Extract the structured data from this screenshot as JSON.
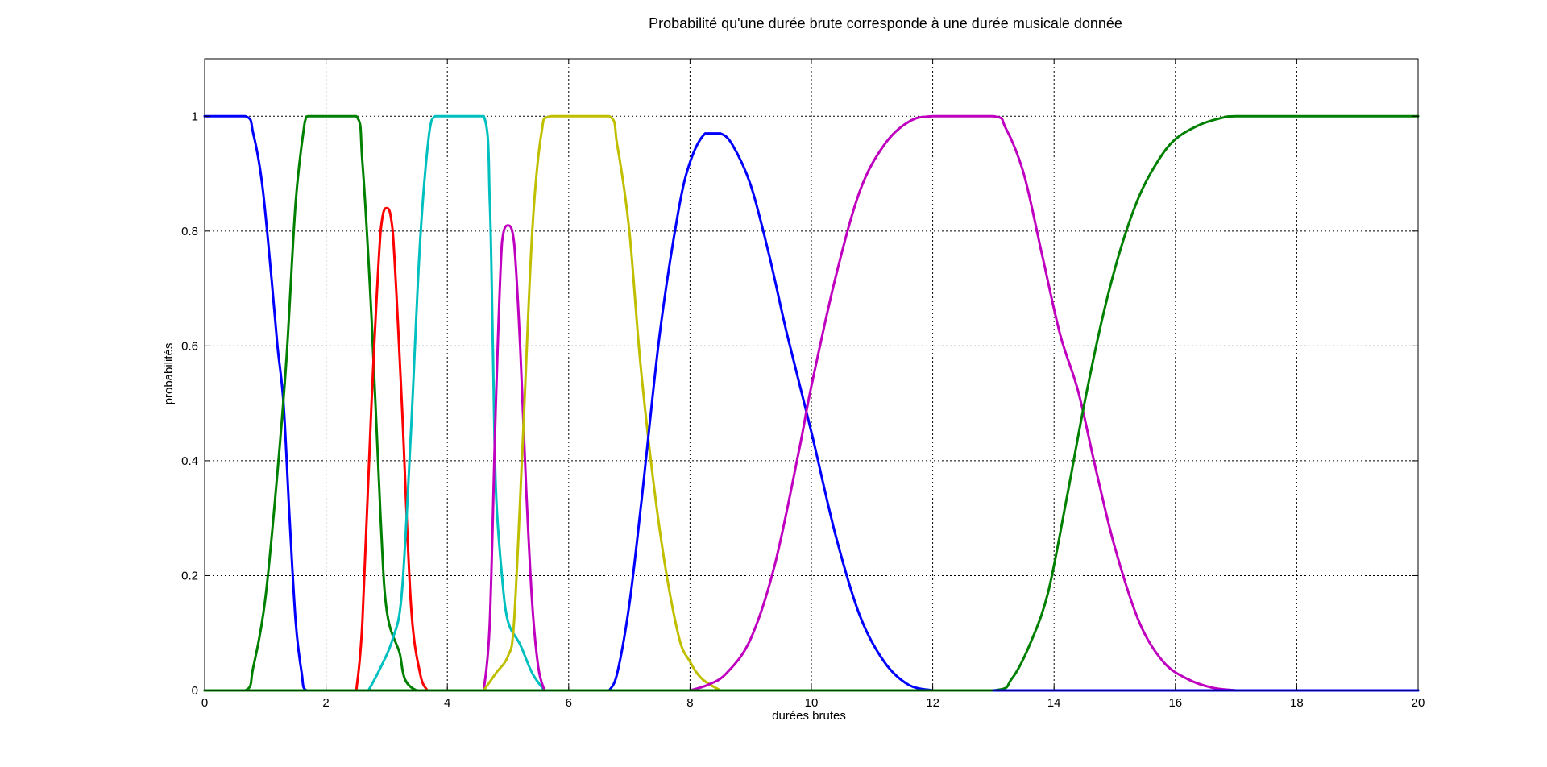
{
  "chart_data": {
    "type": "line",
    "title": "Probabilité qu'une durée brute corresponde à une durée musicale donnée",
    "xlabel": "durées brutes",
    "ylabel": "probabilités",
    "xlim": [
      0,
      20
    ],
    "ylim": [
      0,
      1.1
    ],
    "x_ticks": [
      0,
      2,
      4,
      6,
      8,
      10,
      12,
      14,
      16,
      18,
      20
    ],
    "x_tick_labels": [
      "0",
      "2",
      "4",
      "6",
      "8",
      "10",
      "12",
      "14",
      "16",
      "18",
      "20"
    ],
    "y_ticks": [
      0,
      0.2,
      0.4,
      0.6,
      0.8,
      1
    ],
    "y_tick_labels": [
      "0",
      "0.2",
      "0.4",
      "0.6",
      "0.8",
      "1"
    ],
    "grid": true,
    "series": [
      {
        "color": "#0000ff",
        "x": [
          0,
          0.67,
          0.8,
          0.95,
          1.1,
          1.2,
          1.3,
          1.4,
          1.5,
          1.6,
          1.68,
          20
        ],
        "y": [
          1,
          1,
          0.97,
          0.88,
          0.72,
          0.6,
          0.5,
          0.3,
          0.12,
          0.03,
          0,
          0
        ]
      },
      {
        "color": "#008000",
        "x": [
          0,
          0.67,
          0.8,
          1.0,
          1.2,
          1.35,
          1.5,
          1.65,
          1.7,
          2.5,
          2.6,
          2.75,
          2.9,
          3.0,
          3.2,
          3.5,
          20
        ],
        "y": [
          0,
          0,
          0.04,
          0.16,
          0.38,
          0.58,
          0.85,
          0.99,
          1,
          1,
          0.92,
          0.65,
          0.3,
          0.14,
          0.07,
          0,
          0
        ]
      },
      {
        "color": "#ff0000",
        "x": [
          2.5,
          2.6,
          2.75,
          2.9,
          3.0,
          3.1,
          3.25,
          3.4,
          3.55,
          3.67
        ],
        "y": [
          0,
          0.12,
          0.5,
          0.8,
          0.84,
          0.8,
          0.5,
          0.15,
          0.03,
          0
        ]
      },
      {
        "color": "#00bfbf",
        "x": [
          2.7,
          2.9,
          3.1,
          3.25,
          3.4,
          3.55,
          3.7,
          3.8,
          4.0,
          4.6,
          4.7,
          4.75,
          4.8,
          4.9,
          5.0,
          5.2,
          5.4,
          5.6
        ],
        "y": [
          0,
          0.04,
          0.09,
          0.17,
          0.45,
          0.78,
          0.97,
          1,
          1,
          1,
          0.85,
          0.6,
          0.35,
          0.2,
          0.12,
          0.08,
          0.03,
          0
        ]
      },
      {
        "color": "#bf00bf",
        "x": [
          4.6,
          4.7,
          4.8,
          4.9,
          5.0,
          5.1,
          5.2,
          5.3,
          5.4,
          5.5,
          5.6
        ],
        "y": [
          0,
          0.12,
          0.5,
          0.78,
          0.81,
          0.78,
          0.6,
          0.35,
          0.15,
          0.04,
          0
        ]
      },
      {
        "color": "#bfbf00",
        "x": [
          4.6,
          4.8,
          5.0,
          5.1,
          5.25,
          5.4,
          5.55,
          5.7,
          6.67,
          6.8,
          7.0,
          7.2,
          7.5,
          7.8,
          8.0,
          8.2,
          8.5
        ],
        "y": [
          0,
          0.03,
          0.06,
          0.12,
          0.45,
          0.8,
          0.97,
          1,
          1,
          0.95,
          0.8,
          0.55,
          0.28,
          0.1,
          0.05,
          0.02,
          0
        ]
      },
      {
        "color": "#0000ff",
        "x": [
          6.67,
          6.8,
          7.0,
          7.2,
          7.5,
          7.8,
          8.0,
          8.25,
          8.5,
          8.7,
          9.0,
          9.3,
          9.6,
          10.0,
          10.4,
          10.8,
          11.2,
          11.6,
          12.0
        ],
        "y": [
          0,
          0.03,
          0.15,
          0.33,
          0.62,
          0.83,
          0.92,
          0.97,
          0.97,
          0.95,
          0.88,
          0.76,
          0.62,
          0.45,
          0.27,
          0.13,
          0.05,
          0.01,
          0
        ]
      },
      {
        "color": "#bf00bf",
        "x": [
          8.0,
          8.3,
          8.6,
          9.0,
          9.4,
          9.8,
          10.0,
          10.4,
          10.8,
          11.2,
          11.6,
          12.0,
          13.0,
          13.2,
          13.5,
          13.8,
          14.1,
          14.4,
          14.7,
          15.0,
          15.4,
          15.8,
          16.2,
          16.6,
          17.0
        ],
        "y": [
          0,
          0.01,
          0.03,
          0.09,
          0.22,
          0.42,
          0.53,
          0.72,
          0.87,
          0.95,
          0.99,
          1,
          1,
          0.98,
          0.9,
          0.76,
          0.62,
          0.52,
          0.38,
          0.25,
          0.12,
          0.05,
          0.02,
          0.005,
          0
        ]
      },
      {
        "color": "#008000",
        "x": [
          0,
          13.0,
          13.3,
          13.6,
          13.9,
          14.2,
          14.5,
          14.8,
          15.1,
          15.4,
          15.7,
          16.0,
          16.4,
          16.8,
          17.0,
          20
        ],
        "y": [
          0,
          0,
          0.02,
          0.08,
          0.17,
          0.33,
          0.5,
          0.65,
          0.77,
          0.86,
          0.92,
          0.96,
          0.985,
          0.998,
          1,
          1
        ]
      },
      {
        "color": "#0000ff",
        "x": [
          13.0,
          20
        ],
        "y": [
          0,
          0
        ]
      }
    ]
  }
}
